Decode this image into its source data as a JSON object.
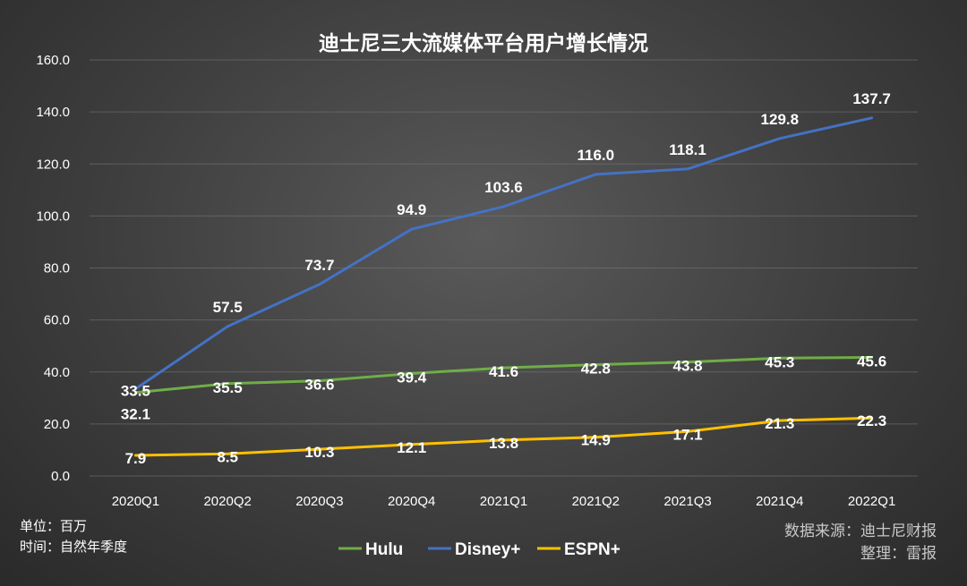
{
  "chart_data": {
    "type": "line",
    "title": "迪士尼三大流媒体平台用户增长情况",
    "categories": [
      "2020Q1",
      "2020Q2",
      "2020Q3",
      "2020Q4",
      "2021Q1",
      "2021Q2",
      "2021Q3",
      "2021Q4",
      "2022Q1"
    ],
    "ylim": [
      0,
      160
    ],
    "yticks": [
      "0.0",
      "20.0",
      "40.0",
      "60.0",
      "80.0",
      "100.0",
      "120.0",
      "140.0",
      "160.0"
    ],
    "grid": true,
    "legend_position": "bottom",
    "series": [
      {
        "name": "Hulu",
        "color": "#70ad47",
        "values": [
          32.1,
          35.5,
          36.6,
          39.4,
          41.6,
          42.8,
          43.8,
          45.3,
          45.6
        ],
        "labels": [
          "32.1",
          "35.5",
          "36.6",
          "39.4",
          "41.6",
          "42.8",
          "43.8",
          "45.3",
          "45.6"
        ]
      },
      {
        "name": "Disney+",
        "color": "#4472c4",
        "values": [
          33.5,
          57.5,
          73.7,
          94.9,
          103.6,
          116.0,
          118.1,
          129.8,
          137.7
        ],
        "labels": [
          "33.5",
          "57.5",
          "73.7",
          "94.9",
          "103.6",
          "116.0",
          "118.1",
          "129.8",
          "137.7"
        ]
      },
      {
        "name": "ESPN+",
        "color": "#ffc000",
        "values": [
          7.9,
          8.5,
          10.3,
          12.1,
          13.8,
          14.9,
          17.1,
          21.3,
          22.3
        ],
        "labels": [
          "7.9",
          "8.5",
          "10.3",
          "12.1",
          "13.8",
          "14.9",
          "17.1",
          "21.3",
          "22.3"
        ]
      }
    ]
  },
  "notes": {
    "unit": "单位：百万",
    "time": "时间：自然年季度",
    "source": "数据来源：迪士尼财报",
    "editor": "整理：雷报"
  }
}
